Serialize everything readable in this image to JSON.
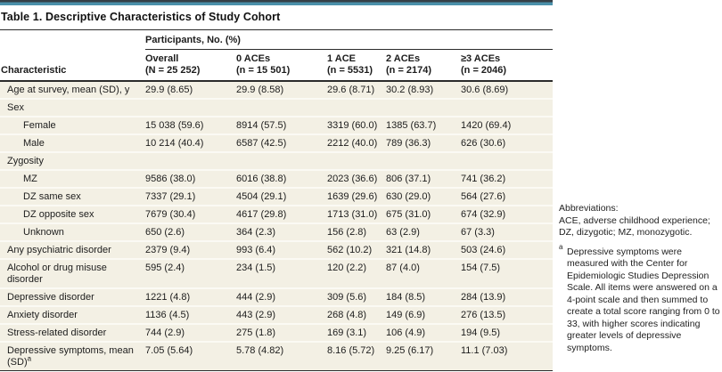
{
  "title": "Table 1. Descriptive Characteristics of Study Cohort",
  "colors": {
    "accent_teal": "#4b90aa",
    "accent_dark": "#353f46",
    "row_beige": "#f3f0e4",
    "rule_dark": "#2b2b2b"
  },
  "table": {
    "group_header": "Participants, No. (%)",
    "col1_header": "Characteristic",
    "columns": [
      {
        "line1": "Overall",
        "line2": "(N = 25 252)"
      },
      {
        "line1": "0 ACEs",
        "line2": "(n = 15 501)"
      },
      {
        "line1": "1 ACE",
        "line2": "(n = 5531)"
      },
      {
        "line1": "2 ACEs",
        "line2": "(n = 2174)"
      },
      {
        "line1": "≥3 ACEs",
        "line2": "(n = 2046)"
      }
    ],
    "rows": [
      {
        "label": "Age at survey, mean (SD), y",
        "type": "data",
        "values": [
          "29.9 (8.65)",
          "29.9 (8.58)",
          "29.6 (8.71)",
          "30.2 (8.93)",
          "30.6 (8.69)"
        ]
      },
      {
        "label": "Sex",
        "type": "section",
        "values": []
      },
      {
        "label": "Female",
        "type": "sub",
        "values": [
          "15 038 (59.6)",
          "8914 (57.5)",
          "3319 (60.0)",
          "1385 (63.7)",
          "1420 (69.4)"
        ]
      },
      {
        "label": "Male",
        "type": "sub",
        "values": [
          "10 214 (40.4)",
          "6587 (42.5)",
          "2212 (40.0)",
          "789 (36.3)",
          "626 (30.6)"
        ]
      },
      {
        "label": "Zygosity",
        "type": "section",
        "values": []
      },
      {
        "label": "MZ",
        "type": "sub",
        "values": [
          "9586 (38.0)",
          "6016 (38.8)",
          "2023 (36.6)",
          "806 (37.1)",
          "741 (36.2)"
        ]
      },
      {
        "label": "DZ same sex",
        "type": "sub",
        "values": [
          "7337 (29.1)",
          "4504 (29.1)",
          "1639 (29.6)",
          "630 (29.0)",
          "564 (27.6)"
        ]
      },
      {
        "label": "DZ opposite sex",
        "type": "sub",
        "values": [
          "7679 (30.4)",
          "4617 (29.8)",
          "1713 (31.0)",
          "675 (31.0)",
          "674 (32.9)"
        ]
      },
      {
        "label": "Unknown",
        "type": "sub",
        "values": [
          "650 (2.6)",
          "364 (2.3)",
          "156 (2.8)",
          "63 (2.9)",
          "67 (3.3)"
        ]
      },
      {
        "label": "Any psychiatric disorder",
        "type": "data",
        "values": [
          "2379 (9.4)",
          "993 (6.4)",
          "562 (10.2)",
          "321 (14.8)",
          "503 (24.6)"
        ]
      },
      {
        "label": "Alcohol or drug misuse disorder",
        "type": "data",
        "values": [
          "595 (2.4)",
          "234 (1.5)",
          "120 (2.2)",
          "87 (4.0)",
          "154 (7.5)"
        ]
      },
      {
        "label": "Depressive disorder",
        "type": "data",
        "values": [
          "1221 (4.8)",
          "444 (2.9)",
          "309 (5.6)",
          "184 (8.5)",
          "284 (13.9)"
        ]
      },
      {
        "label": "Anxiety disorder",
        "type": "data",
        "values": [
          "1136 (4.5)",
          "443 (2.9)",
          "268 (4.8)",
          "149 (6.9)",
          "276 (13.5)"
        ]
      },
      {
        "label": "Stress-related disorder",
        "type": "data",
        "values": [
          "744 (2.9)",
          "275 (1.8)",
          "169 (3.1)",
          "106 (4.9)",
          "194 (9.5)"
        ]
      },
      {
        "label": "Depressive symptoms, mean (SD)",
        "label_sup": "a",
        "type": "data",
        "values": [
          "7.05 (5.64)",
          "5.78 (4.82)",
          "8.16 (5.72)",
          "9.25 (6.17)",
          "11.1 (7.03)"
        ]
      }
    ]
  },
  "footnotes": {
    "abbreviations_label": "Abbreviations:",
    "abbreviations_text": "ACE, adverse childhood experience; DZ, dizygotic; MZ, monozygotic.",
    "note_a_marker": "a",
    "note_a_text": "Depressive symptoms were measured with the Center for Epidemiologic Studies Depression Scale. All items were answered on a 4-point scale and then summed to create a total score ranging from 0 to 33, with higher scores indicating greater levels of depressive symptoms."
  }
}
